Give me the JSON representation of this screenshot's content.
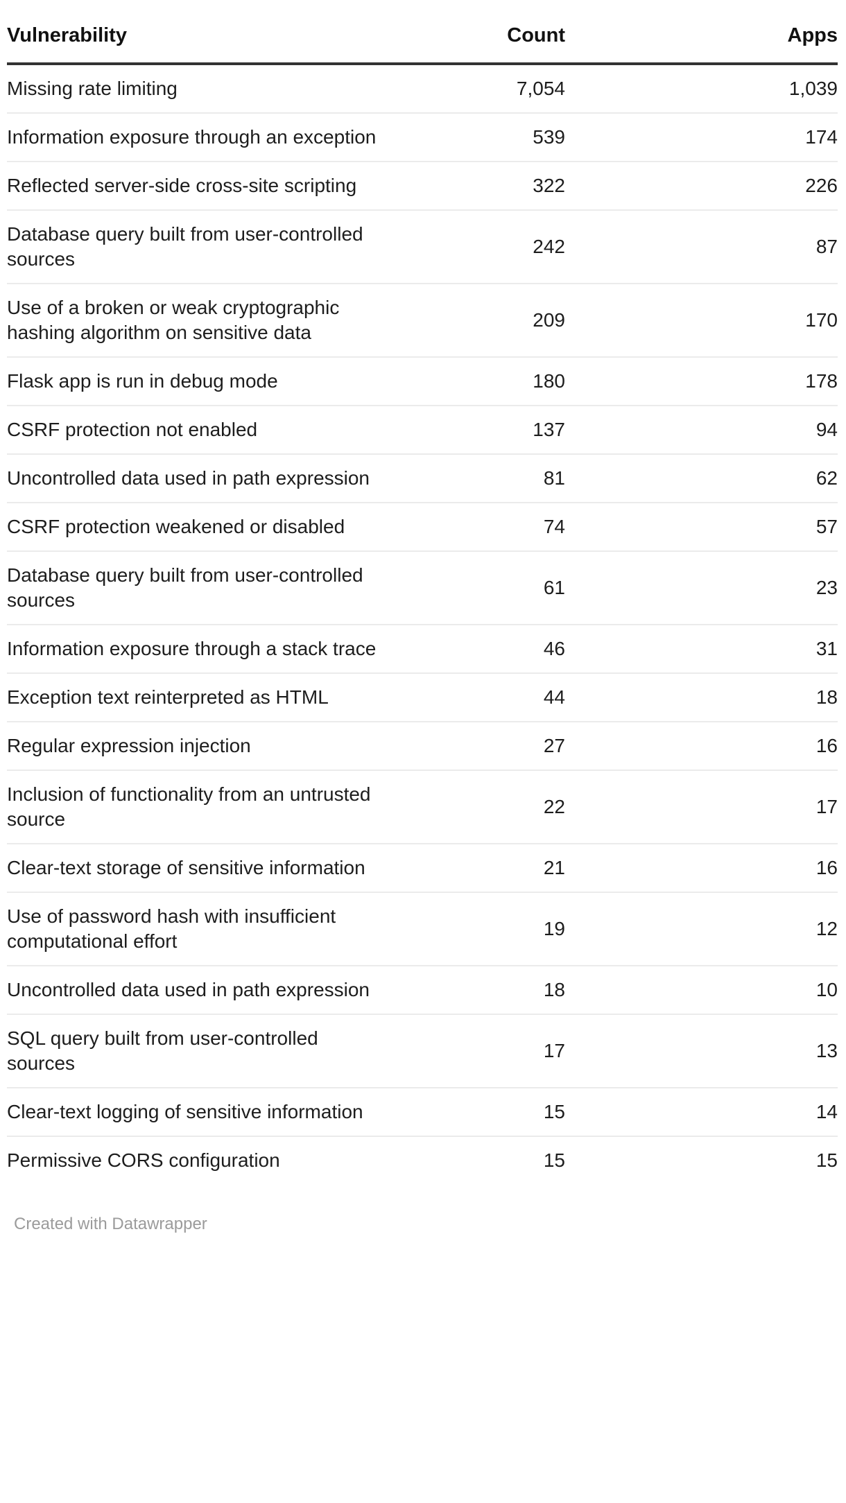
{
  "chart_data": {
    "type": "table",
    "columns": [
      "Vulnerability",
      "Count",
      "Apps"
    ],
    "rows": [
      [
        "Missing rate limiting",
        "7,054",
        "1,039"
      ],
      [
        "Information exposure through an exception",
        "539",
        "174"
      ],
      [
        "Reflected server-side cross-site scripting",
        "322",
        "226"
      ],
      [
        "Database query built from user-controlled sources",
        "242",
        "87"
      ],
      [
        "Use of a broken or weak cryptographic hashing algorithm on sensitive data",
        "209",
        "170"
      ],
      [
        "Flask app is run in debug mode",
        "180",
        "178"
      ],
      [
        "CSRF protection not enabled",
        "137",
        "94"
      ],
      [
        "Uncontrolled data used in path expression",
        "81",
        "62"
      ],
      [
        "CSRF protection weakened or disabled",
        "74",
        "57"
      ],
      [
        "Database query built from user-controlled sources",
        "61",
        "23"
      ],
      [
        "Information exposure through a stack trace",
        "46",
        "31"
      ],
      [
        "Exception text reinterpreted as HTML",
        "44",
        "18"
      ],
      [
        "Regular expression injection",
        "27",
        "16"
      ],
      [
        "Inclusion of functionality from an untrusted source",
        "22",
        "17"
      ],
      [
        "Clear-text storage of sensitive information",
        "21",
        "16"
      ],
      [
        "Use of password hash with insufficient computational effort",
        "19",
        "12"
      ],
      [
        "Uncontrolled data used in path expression",
        "18",
        "10"
      ],
      [
        "SQL query built from user-controlled sources",
        "17",
        "13"
      ],
      [
        "Clear-text logging of sensitive information",
        "15",
        "14"
      ],
      [
        "Permissive CORS configuration",
        "15",
        "15"
      ]
    ],
    "title": "",
    "legend_position": "none",
    "grid": "row-dividers-only"
  },
  "footer": {
    "credit": "Created with Datawrapper"
  },
  "colors": {
    "background": "#ffffff",
    "text": "#1d1d1d",
    "header_text": "#111111",
    "header_border": "#333333",
    "row_divider": "#ebebeb",
    "footer_text": "#9b9b9b"
  }
}
